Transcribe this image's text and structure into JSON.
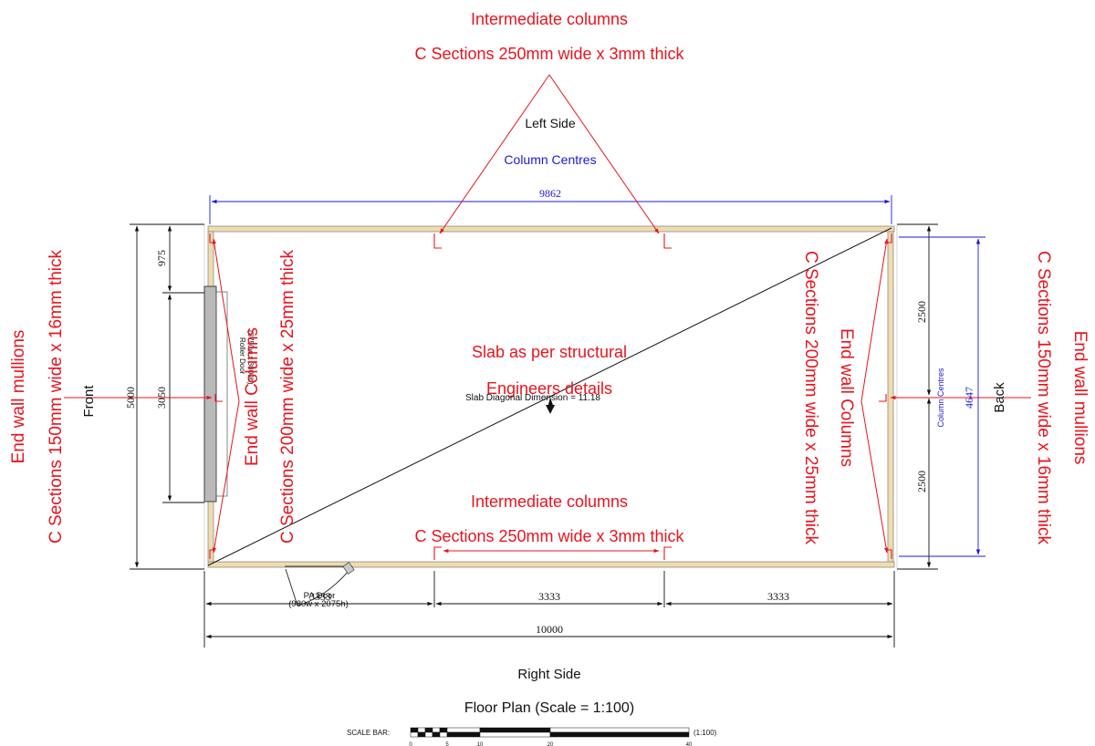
{
  "labels": {
    "intermediate_top": "Intermediate columns",
    "c_sections_top": "C Sections 250mm wide x 3mm thick",
    "left_side": "Left Side",
    "column_centres_top": "Column Centres",
    "dim_9862": "9862",
    "end_wall_mullions_left": "End wall mullions",
    "c_sections_150_left": "C Sections 150mm wide x 16mm thick",
    "front": "Front",
    "dim_5000": "5000",
    "dim_975": "975",
    "dim_3050": "3050",
    "roller_door": "Roller Door",
    "roller_door_size": "(3750w x 3000h)",
    "end_wall_columns_left": "End wall Columns",
    "c_sections_200_left": "C Sections 200mm wide x 25mm thick",
    "slab_line1": "Slab as per structural",
    "slab_line2": "Engineers details",
    "slab_diagonal": "Slab Diagonal Dimension = 11.18",
    "c_sections_200_right": "C Sections 200mm wide x 25mm thick",
    "end_wall_columns_right": "End wall Columns",
    "dim_2500_top": "2500",
    "dim_2500_bottom": "2500",
    "column_centres_right": "Column Centres",
    "dim_4647": "4647",
    "back": "Back",
    "c_sections_150_right": "C Sections 150mm wide x 16mm thick",
    "end_wall_mullions_right": "End wall mullions",
    "intermediate_bottom": "Intermediate columns",
    "c_sections_bottom": "C Sections 250mm wide x 3mm thick",
    "pa_door": "PA Door",
    "pa_door_size": "(980w x 2075h)",
    "dim_3333_a": "3333",
    "dim_3333_b": "3333",
    "dim_3333_c": "3333",
    "dim_10000": "10000",
    "right_side": "Right Side",
    "title": "Floor Plan (Scale = 1:100)",
    "scale_bar": "SCALE BAR:",
    "scale_ratio": "(1:100)",
    "scale_ticks": [
      "0",
      "5",
      "10",
      "20",
      "40"
    ]
  },
  "colors": {
    "annotation_red": "#e8141e",
    "dimension_blue": "#1a1ad6",
    "wall_fill": "#efdcae",
    "door_grey": "#b9b9b9",
    "line_black": "#111111"
  }
}
